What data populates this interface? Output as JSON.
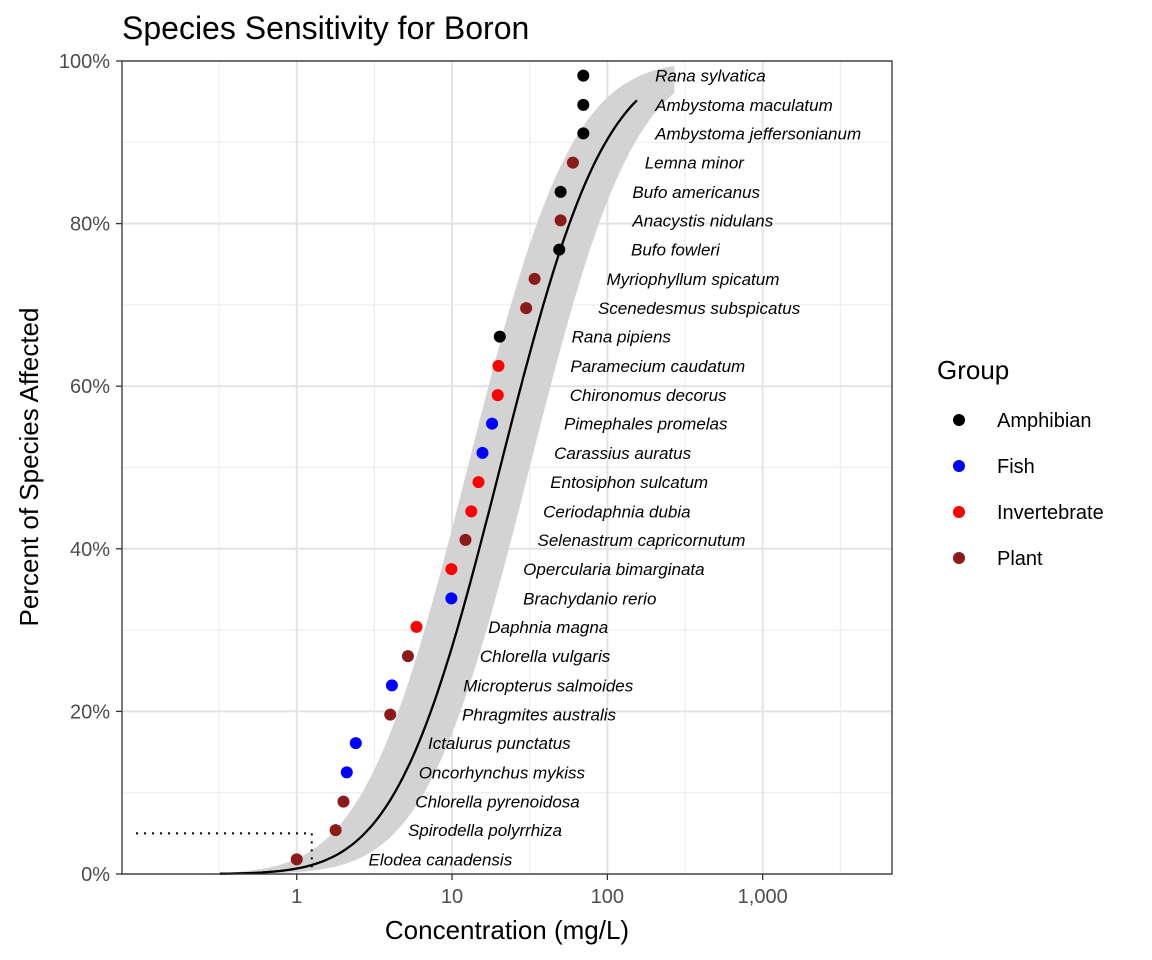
{
  "chart_data": {
    "type": "scatter",
    "title": "Species Sensitivity for Boron",
    "xlabel": "Concentration (mg/L)",
    "ylabel": "Percent of Species Affected",
    "x_scale": "log10",
    "xlim": [
      0.075,
      6800
    ],
    "ylim": [
      0,
      100
    ],
    "x_ticks": [
      {
        "value": 1,
        "label": "1"
      },
      {
        "value": 10,
        "label": "10"
      },
      {
        "value": 100,
        "label": "100"
      },
      {
        "value": 1000,
        "label": "1,000"
      }
    ],
    "y_ticks": [
      {
        "value": 0,
        "label": "0%"
      },
      {
        "value": 20,
        "label": "20%"
      },
      {
        "value": 40,
        "label": "40%"
      },
      {
        "value": 60,
        "label": "60%"
      },
      {
        "value": 80,
        "label": "80%"
      },
      {
        "value": 100,
        "label": "100%"
      }
    ],
    "grid": true,
    "legend": {
      "title": "Group",
      "position": "right",
      "entries": [
        {
          "name": "Amphibian",
          "color": "#000000"
        },
        {
          "name": "Fish",
          "color": "#0000ff"
        },
        {
          "name": "Invertebrate",
          "color": "#ff0000"
        },
        {
          "name": "Plant",
          "color": "#8b1a1a"
        }
      ]
    },
    "points": [
      {
        "species": "Elodea canadensis",
        "group": "Plant",
        "x": 1.0,
        "y": 1.8,
        "label_x": 2.9
      },
      {
        "species": "Spirodella polyrrhiza",
        "group": "Plant",
        "x": 1.78,
        "y": 5.4,
        "label_x": 5.2
      },
      {
        "species": "Chlorella pyrenoidosa",
        "group": "Plant",
        "x": 2.0,
        "y": 8.9,
        "label_x": 5.8
      },
      {
        "species": "Oncorhynchus mykiss",
        "group": "Fish",
        "x": 2.1,
        "y": 12.5,
        "label_x": 6.1
      },
      {
        "species": "Ictalurus punctatus",
        "group": "Fish",
        "x": 2.4,
        "y": 16.1,
        "label_x": 7.0
      },
      {
        "species": "Phragmites australis",
        "group": "Plant",
        "x": 4.0,
        "y": 19.6,
        "label_x": 11.6
      },
      {
        "species": "Micropterus salmoides",
        "group": "Fish",
        "x": 4.1,
        "y": 23.2,
        "label_x": 11.8
      },
      {
        "species": "Chlorella vulgaris",
        "group": "Plant",
        "x": 5.2,
        "y": 26.8,
        "label_x": 15.1
      },
      {
        "species": "Daphnia magna",
        "group": "Invertebrate",
        "x": 5.9,
        "y": 30.4,
        "label_x": 17.1
      },
      {
        "species": "Brachydanio rerio",
        "group": "Fish",
        "x": 9.9,
        "y": 33.9,
        "label_x": 28.7
      },
      {
        "species": "Opercularia bimarginata",
        "group": "Invertebrate",
        "x": 9.9,
        "y": 37.5,
        "label_x": 28.7
      },
      {
        "species": "Selenastrum capricornutum",
        "group": "Plant",
        "x": 12.2,
        "y": 41.1,
        "label_x": 35.5
      },
      {
        "species": "Ceriodaphnia dubia",
        "group": "Invertebrate",
        "x": 13.3,
        "y": 44.6,
        "label_x": 38.6
      },
      {
        "species": "Entosiphon sulcatum",
        "group": "Invertebrate",
        "x": 14.8,
        "y": 48.2,
        "label_x": 42.9
      },
      {
        "species": "Carassius auratus",
        "group": "Fish",
        "x": 15.7,
        "y": 51.8,
        "label_x": 45.4
      },
      {
        "species": "Pimephales promelas",
        "group": "Fish",
        "x": 18.1,
        "y": 55.4,
        "label_x": 52.6
      },
      {
        "species": "Chironomus decorus",
        "group": "Invertebrate",
        "x": 19.7,
        "y": 58.9,
        "label_x": 57.2
      },
      {
        "species": "Paramecium caudatum",
        "group": "Invertebrate",
        "x": 19.9,
        "y": 62.5,
        "label_x": 57.8
      },
      {
        "species": "Rana pipiens",
        "group": "Amphibian",
        "x": 20.3,
        "y": 66.1,
        "label_x": 58.9
      },
      {
        "species": "Scenedesmus subspicatus",
        "group": "Plant",
        "x": 30.0,
        "y": 69.6,
        "label_x": 87.0
      },
      {
        "species": "Myriophyllum spicatum",
        "group": "Plant",
        "x": 34.0,
        "y": 73.2,
        "label_x": 98.7
      },
      {
        "species": "Bufo fowleri",
        "group": "Amphibian",
        "x": 49.0,
        "y": 76.8,
        "label_x": 142.0
      },
      {
        "species": "Anacystis nidulans",
        "group": "Plant",
        "x": 50.0,
        "y": 80.4,
        "label_x": 145.0
      },
      {
        "species": "Bufo americanus",
        "group": "Amphibian",
        "x": 50.0,
        "y": 83.9,
        "label_x": 145.0
      },
      {
        "species": "Lemna minor",
        "group": "Plant",
        "x": 60.0,
        "y": 87.5,
        "label_x": 174.0
      },
      {
        "species": "Ambystoma jeffersonianum",
        "group": "Amphibian",
        "x": 70.0,
        "y": 91.1,
        "label_x": 203.0
      },
      {
        "species": "Ambystoma maculatum",
        "group": "Amphibian",
        "x": 70.0,
        "y": 94.6,
        "label_x": 203.0
      },
      {
        "species": "Rana sylvatica",
        "group": "Amphibian",
        "x": 70.0,
        "y": 98.2,
        "label_x": 203.0
      }
    ],
    "fit_curve": {
      "type": "lognormal-cdf",
      "x_range": [
        0.32,
        155
      ],
      "x_at_50pct": 20.4,
      "log10_sd": 0.53,
      "band": {
        "x_range": [
          0.13,
          270
        ],
        "lower_x_at_50pct": 31.6,
        "upper_x_at_50pct": 12.6
      },
      "color": "#000000",
      "band_color": "#d3d3d3"
    },
    "hc5": {
      "percent": 5,
      "x": 1.25
    }
  }
}
